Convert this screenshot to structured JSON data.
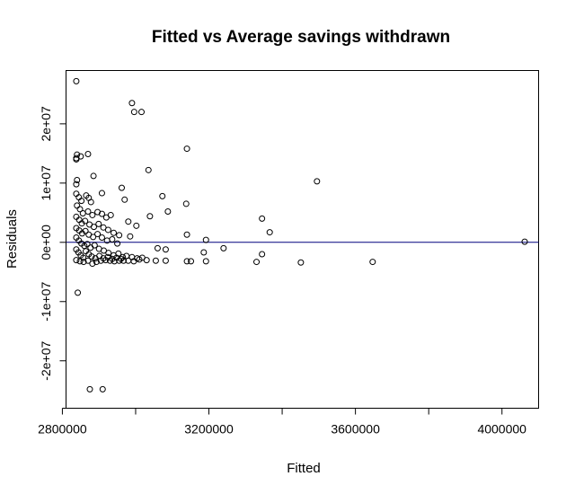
{
  "chart_data": {
    "type": "scatter",
    "title": "Fitted vs Average savings withdrawn",
    "xlabel": "Fitted",
    "ylabel": "Residuals",
    "xlim": [
      2810000,
      4100000
    ],
    "ylim": [
      -28000000,
      29000000
    ],
    "x_ticks": [
      {
        "value": 2800000,
        "label": "2800000"
      },
      {
        "value": 3000000,
        "label": ""
      },
      {
        "value": 3200000,
        "label": "3200000"
      },
      {
        "value": 3400000,
        "label": ""
      },
      {
        "value": 3600000,
        "label": "3600000"
      },
      {
        "value": 3800000,
        "label": ""
      },
      {
        "value": 4000000,
        "label": "4000000"
      }
    ],
    "y_ticks": [
      {
        "value": -20000000,
        "label": "-2e+07"
      },
      {
        "value": -10000000,
        "label": "-1e+07"
      },
      {
        "value": 0,
        "label": "0e+00"
      },
      {
        "value": 10000000,
        "label": "1e+07"
      },
      {
        "value": 20000000,
        "label": "2e+07"
      }
    ],
    "reference_line": {
      "y": 0,
      "color": "#00007f"
    },
    "grid": false,
    "marker": "open-circle",
    "points": [
      [
        2838000,
        27200000
      ],
      [
        2990000,
        23500000
      ],
      [
        2996000,
        22000000
      ],
      [
        3016000,
        22000000
      ],
      [
        2840000,
        14800000
      ],
      [
        2838000,
        14200000
      ],
      [
        2850000,
        14500000
      ],
      [
        2870000,
        14900000
      ],
      [
        2838000,
        14000000
      ],
      [
        2840000,
        10500000
      ],
      [
        2838000,
        9800000
      ],
      [
        3140000,
        15800000
      ],
      [
        3035000,
        12200000
      ],
      [
        2885000,
        11200000
      ],
      [
        3495000,
        10300000
      ],
      [
        2962000,
        9200000
      ],
      [
        2908000,
        8300000
      ],
      [
        3073000,
        7800000
      ],
      [
        2970000,
        7200000
      ],
      [
        3138000,
        6500000
      ],
      [
        3088000,
        5200000
      ],
      [
        3039000,
        4400000
      ],
      [
        2980000,
        3500000
      ],
      [
        3002000,
        2800000
      ],
      [
        3345000,
        4000000
      ],
      [
        3366000,
        1700000
      ],
      [
        3140000,
        1300000
      ],
      [
        3192000,
        400000
      ],
      [
        4062000,
        100000
      ],
      [
        2985000,
        1000000
      ],
      [
        3060000,
        -1000000
      ],
      [
        3082000,
        -1200000
      ],
      [
        3240000,
        -1000000
      ],
      [
        3186000,
        -1700000
      ],
      [
        3345000,
        -2000000
      ],
      [
        3330000,
        -3300000
      ],
      [
        3451000,
        -3400000
      ],
      [
        3647000,
        -3300000
      ],
      [
        3140000,
        -3200000
      ],
      [
        3151000,
        -3200000
      ],
      [
        3192000,
        -3200000
      ],
      [
        3082000,
        -3100000
      ],
      [
        3055000,
        -3100000
      ],
      [
        3030000,
        -3000000
      ],
      [
        3010000,
        -2900000
      ],
      [
        2842000,
        -8500000
      ],
      [
        2875000,
        -24800000
      ],
      [
        2910000,
        -24800000
      ],
      [
        2838000,
        -3000000
      ],
      [
        2848000,
        -3200000
      ],
      [
        2858000,
        -3300000
      ],
      [
        2870000,
        -3100000
      ],
      [
        2882000,
        -3600000
      ],
      [
        2893000,
        -3300000
      ],
      [
        2905000,
        -3100000
      ],
      [
        2918000,
        -3000000
      ],
      [
        2930000,
        -3100000
      ],
      [
        2942000,
        -3200000
      ],
      [
        2955000,
        -3100000
      ],
      [
        2967000,
        -3100000
      ],
      [
        2980000,
        -3100000
      ],
      [
        2995000,
        -3200000
      ],
      [
        2838000,
        8200000
      ],
      [
        2845000,
        7600000
      ],
      [
        2852000,
        7000000
      ],
      [
        2865000,
        7900000
      ],
      [
        2872000,
        7500000
      ],
      [
        2878000,
        6800000
      ],
      [
        2840000,
        6200000
      ],
      [
        2848000,
        5600000
      ],
      [
        2856000,
        4900000
      ],
      [
        2870000,
        5200000
      ],
      [
        2882000,
        4600000
      ],
      [
        2896000,
        5100000
      ],
      [
        2908000,
        4800000
      ],
      [
        2920000,
        4200000
      ],
      [
        2932000,
        4600000
      ],
      [
        2838000,
        4300000
      ],
      [
        2846000,
        3800000
      ],
      [
        2853000,
        3200000
      ],
      [
        2862000,
        3600000
      ],
      [
        2874000,
        3000000
      ],
      [
        2886000,
        2600000
      ],
      [
        2899000,
        3100000
      ],
      [
        2912000,
        2500000
      ],
      [
        2925000,
        2100000
      ],
      [
        2940000,
        1600000
      ],
      [
        2955000,
        1200000
      ],
      [
        2838000,
        2400000
      ],
      [
        2846000,
        2000000
      ],
      [
        2854000,
        1500000
      ],
      [
        2863000,
        1900000
      ],
      [
        2872000,
        1300000
      ],
      [
        2884000,
        900000
      ],
      [
        2896000,
        1400000
      ],
      [
        2908000,
        800000
      ],
      [
        2922000,
        300000
      ],
      [
        2936000,
        500000
      ],
      [
        2950000,
        -200000
      ],
      [
        2838000,
        800000
      ],
      [
        2845000,
        300000
      ],
      [
        2852000,
        -200000
      ],
      [
        2860000,
        -600000
      ],
      [
        2868000,
        -300000
      ],
      [
        2877000,
        -900000
      ],
      [
        2888000,
        -500000
      ],
      [
        2900000,
        -1100000
      ],
      [
        2913000,
        -1400000
      ],
      [
        2926000,
        -1800000
      ],
      [
        2940000,
        -2200000
      ],
      [
        2953000,
        -1900000
      ],
      [
        2965000,
        -2500000
      ],
      [
        2975000,
        -2300000
      ],
      [
        2838000,
        -1200000
      ],
      [
        2844000,
        -1700000
      ],
      [
        2850000,
        -2200000
      ],
      [
        2857000,
        -2600000
      ],
      [
        2864000,
        -1500000
      ],
      [
        2872000,
        -2000000
      ],
      [
        2880000,
        -2400000
      ],
      [
        2890000,
        -2700000
      ],
      [
        2901000,
        -2300000
      ],
      [
        2912000,
        -2700000
      ],
      [
        2924000,
        -2500000
      ],
      [
        2936000,
        -2800000
      ],
      [
        2948000,
        -2600000
      ],
      [
        2960000,
        -2800000
      ],
      [
        2990000,
        -2500000
      ],
      [
        3004000,
        -2700000
      ],
      [
        3018000,
        -2600000
      ]
    ]
  }
}
